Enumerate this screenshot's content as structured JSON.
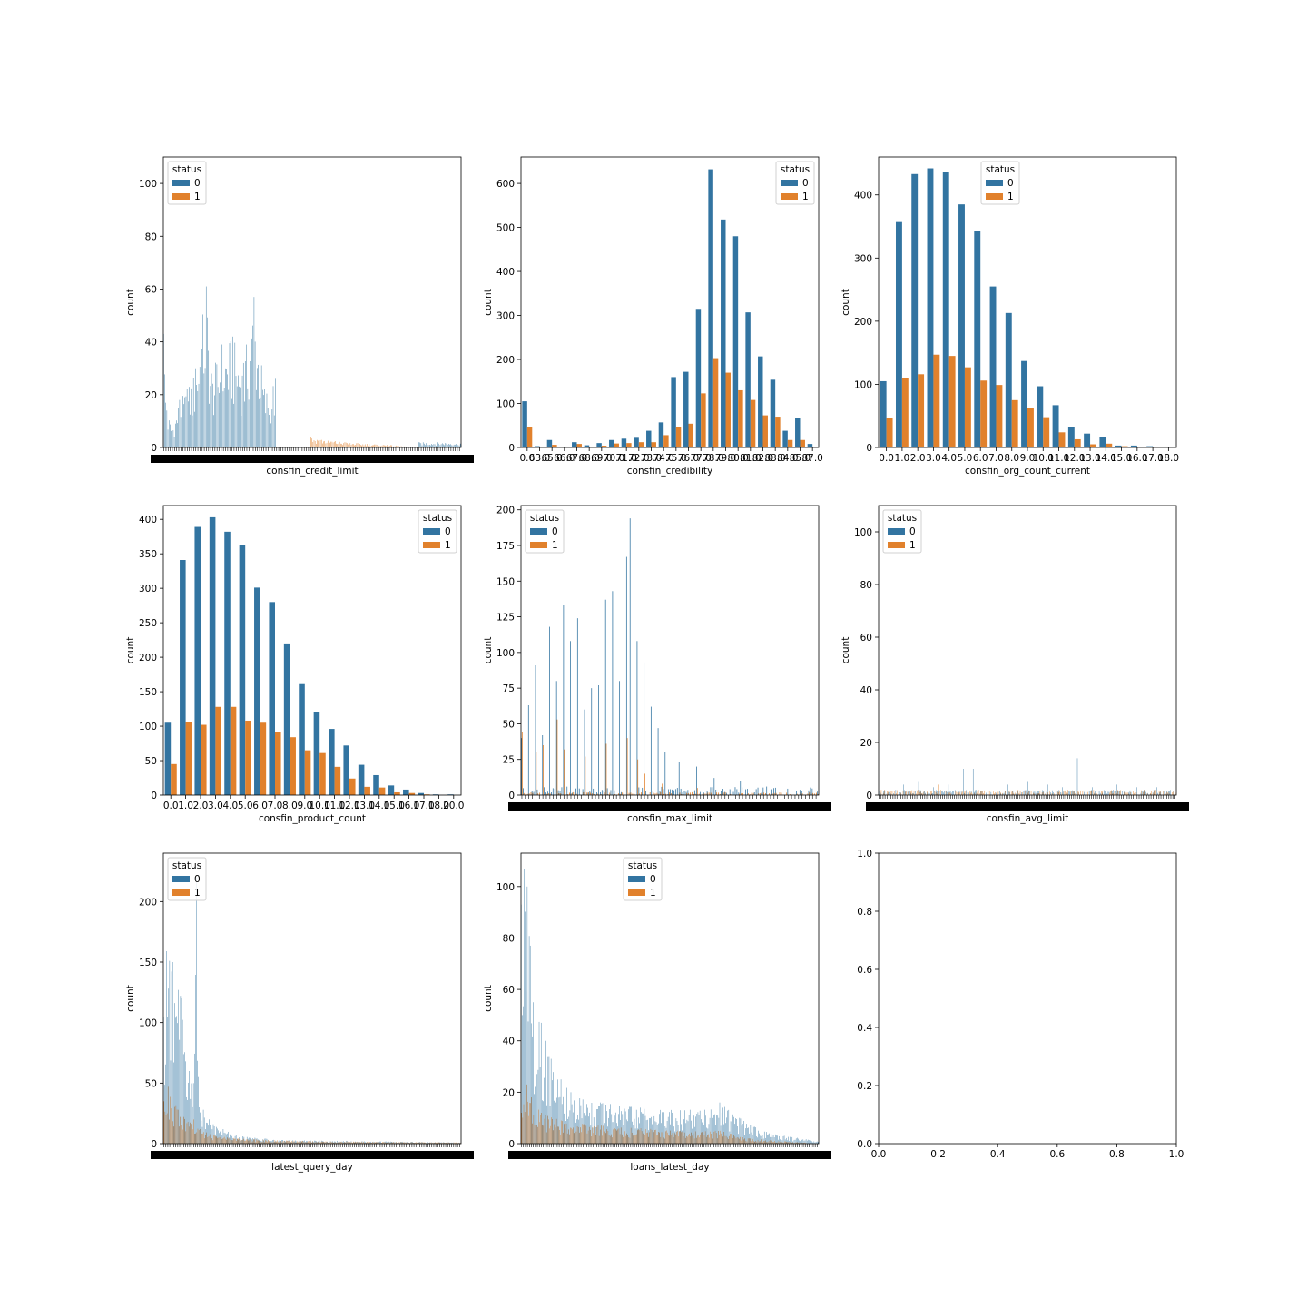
{
  "legend_title": "status",
  "colors": {
    "status_0": "#3274a1",
    "status_1": "#e1812c"
  },
  "chart_data": [
    {
      "type": "bar",
      "xlabel": "consfin_credit_limit",
      "ylabel": "count",
      "ylim": [
        0,
        110
      ],
      "yticks": [
        0,
        20,
        40,
        60,
        80,
        100
      ],
      "legend_position": "upper left",
      "categories_approx": 280,
      "series": [
        {
          "name": "0",
          "profile": [
            [
              0,
              43
            ],
            [
              3,
              14
            ],
            [
              8,
              8
            ],
            [
              15,
              18
            ],
            [
              22,
              22
            ],
            [
              30,
              30
            ],
            [
              40,
              61
            ],
            [
              45,
              28
            ],
            [
              55,
              39
            ],
            [
              65,
              42
            ],
            [
              75,
              32
            ],
            [
              85,
              57
            ],
            [
              95,
              22
            ],
            [
              105,
              26
            ],
            [
              106,
              0
            ],
            [
              239,
              0
            ],
            [
              240,
              2
            ],
            [
              280,
              2
            ]
          ]
        },
        {
          "name": "1",
          "profile": [
            [
              0,
              0
            ],
            [
              137,
              0
            ],
            [
              138,
              4
            ],
            [
              170,
              2
            ],
            [
              210,
              1
            ],
            [
              240,
              0
            ],
            [
              280,
              0
            ]
          ]
        }
      ]
    },
    {
      "type": "bar",
      "xlabel": "consfin_credibility",
      "ylabel": "count",
      "ylim": [
        0,
        660
      ],
      "yticks": [
        0,
        100,
        200,
        300,
        400,
        500,
        600
      ],
      "legend_position": "upper right",
      "categories": [
        "0.0",
        "63.0",
        "65.0",
        "66.0",
        "67.0",
        "68.0",
        "69.0",
        "70.0",
        "71.0",
        "72.0",
        "73.0",
        "74.0",
        "75.0",
        "76.0",
        "77.0",
        "78.0",
        "79.0",
        "80.0",
        "81.0",
        "82.0",
        "83.0",
        "84.0",
        "85.0",
        "87.0"
      ],
      "series": [
        {
          "name": "0",
          "values": [
            105,
            3,
            17,
            2,
            12,
            5,
            10,
            17,
            20,
            22,
            38,
            57,
            160,
            172,
            315,
            632,
            518,
            480,
            307,
            207,
            154,
            38,
            67,
            8
          ]
        },
        {
          "name": "1",
          "values": [
            47,
            0,
            6,
            1,
            8,
            2,
            4,
            9,
            10,
            12,
            12,
            28,
            47,
            54,
            123,
            203,
            170,
            130,
            108,
            73,
            70,
            17,
            17,
            2
          ]
        }
      ]
    },
    {
      "type": "bar",
      "xlabel": "consfin_org_count_current",
      "ylabel": "count",
      "ylim": [
        0,
        460
      ],
      "yticks": [
        0,
        100,
        200,
        300,
        400
      ],
      "legend_position": "upper center",
      "categories": [
        "0.0",
        "1.0",
        "2.0",
        "3.0",
        "4.0",
        "5.0",
        "6.0",
        "7.0",
        "8.0",
        "9.0",
        "10.0",
        "11.0",
        "12.0",
        "13.0",
        "14.0",
        "15.0",
        "16.0",
        "17.0",
        "18.0"
      ],
      "series": [
        {
          "name": "0",
          "values": [
            105,
            357,
            433,
            442,
            437,
            385,
            343,
            255,
            213,
            137,
            97,
            67,
            33,
            22,
            16,
            3,
            3,
            2,
            1
          ]
        },
        {
          "name": "1",
          "values": [
            46,
            110,
            116,
            147,
            145,
            127,
            106,
            99,
            75,
            62,
            48,
            24,
            13,
            5,
            6,
            2,
            0,
            0,
            0
          ]
        }
      ]
    },
    {
      "type": "bar",
      "xlabel": "consfin_product_count",
      "ylabel": "count",
      "ylim": [
        0,
        420
      ],
      "yticks": [
        0,
        50,
        100,
        150,
        200,
        250,
        300,
        350,
        400
      ],
      "legend_position": "upper right",
      "categories": [
        "0.0",
        "1.0",
        "2.0",
        "3.0",
        "4.0",
        "5.0",
        "6.0",
        "7.0",
        "8.0",
        "9.0",
        "10.0",
        "11.0",
        "12.0",
        "13.0",
        "14.0",
        "15.0",
        "16.0",
        "17.0",
        "18.0",
        "20.0"
      ],
      "series": [
        {
          "name": "0",
          "values": [
            105,
            341,
            389,
            403,
            382,
            363,
            301,
            280,
            220,
            161,
            120,
            96,
            72,
            44,
            29,
            14,
            8,
            3,
            1,
            1
          ]
        },
        {
          "name": "1",
          "values": [
            45,
            106,
            102,
            128,
            128,
            108,
            105,
            92,
            84,
            65,
            61,
            41,
            24,
            12,
            11,
            4,
            3,
            1,
            0,
            0
          ]
        }
      ]
    },
    {
      "type": "bar",
      "xlabel": "consfin_max_limit",
      "ylabel": "count",
      "ylim": [
        0,
        203
      ],
      "yticks": [
        0,
        25,
        50,
        75,
        100,
        125,
        150,
        175,
        200
      ],
      "legend_position": "upper left",
      "categories_approx": 170,
      "series": [
        {
          "name": "0",
          "spikes": [
            [
              0,
              40
            ],
            [
              4,
              63
            ],
            [
              8,
              91
            ],
            [
              12,
              42
            ],
            [
              16,
              118
            ],
            [
              20,
              80
            ],
            [
              24,
              133
            ],
            [
              28,
              108
            ],
            [
              32,
              124
            ],
            [
              36,
              60
            ],
            [
              40,
              75
            ],
            [
              44,
              77
            ],
            [
              48,
              137
            ],
            [
              52,
              143
            ],
            [
              56,
              80
            ],
            [
              60,
              167
            ],
            [
              62,
              194
            ],
            [
              66,
              108
            ],
            [
              70,
              93
            ],
            [
              74,
              62
            ],
            [
              78,
              47
            ],
            [
              82,
              30
            ],
            [
              90,
              23
            ],
            [
              100,
              20
            ],
            [
              110,
              12
            ],
            [
              125,
              10
            ],
            [
              140,
              6
            ],
            [
              160,
              3
            ]
          ],
          "base": 3
        },
        {
          "name": "1",
          "spikes": [
            [
              0,
              44
            ],
            [
              8,
              30
            ],
            [
              12,
              35
            ],
            [
              20,
              53
            ],
            [
              24,
              32
            ],
            [
              36,
              27
            ],
            [
              48,
              36
            ],
            [
              60,
              40
            ],
            [
              66,
              25
            ],
            [
              70,
              15
            ],
            [
              80,
              8
            ],
            [
              100,
              5
            ]
          ],
          "base": 1
        }
      ]
    },
    {
      "type": "bar",
      "xlabel": "consfin_avg_limit",
      "ylabel": "count",
      "ylim": [
        0,
        110
      ],
      "yticks": [
        0,
        20,
        40,
        60,
        80,
        100
      ],
      "legend_position": "upper left",
      "categories_approx": 300,
      "series": [
        {
          "name": "0",
          "spikes": [
            [
              10,
              3
            ],
            [
              25,
              4
            ],
            [
              40,
              5
            ],
            [
              55,
              3
            ],
            [
              70,
              4
            ],
            [
              85,
              10
            ],
            [
              95,
              10
            ],
            [
              110,
              3
            ],
            [
              130,
              4
            ],
            [
              150,
              5
            ],
            [
              170,
              4
            ],
            [
              185,
              3
            ],
            [
              200,
              14
            ],
            [
              215,
              3
            ],
            [
              240,
              4
            ],
            [
              260,
              3
            ],
            [
              280,
              3
            ]
          ],
          "base": 1
        },
        {
          "name": "1",
          "spikes": [
            [
              20,
              2
            ],
            [
              60,
              4
            ],
            [
              100,
              2
            ],
            [
              140,
              2
            ],
            [
              190,
              2
            ],
            [
              240,
              2
            ]
          ],
          "base": 1
        }
      ]
    },
    {
      "type": "bar",
      "xlabel": "latest_query_day",
      "ylabel": "count",
      "ylim": [
        0,
        240
      ],
      "yticks": [
        0,
        50,
        100,
        150,
        200
      ],
      "legend_position": "upper left",
      "categories_approx": 300,
      "series": [
        {
          "name": "0",
          "profile": [
            [
              0,
              105
            ],
            [
              3,
              159
            ],
            [
              6,
              151
            ],
            [
              9,
              150
            ],
            [
              12,
              104
            ],
            [
              15,
              127
            ],
            [
              18,
              120
            ],
            [
              22,
              68
            ],
            [
              26,
              60
            ],
            [
              30,
              50
            ],
            [
              33,
              220
            ],
            [
              36,
              30
            ],
            [
              40,
              28
            ],
            [
              50,
              16
            ],
            [
              60,
              12
            ],
            [
              80,
              6
            ],
            [
              120,
              3
            ],
            [
              200,
              2
            ],
            [
              300,
              1
            ]
          ]
        },
        {
          "name": "1",
          "profile": [
            [
              0,
              35
            ],
            [
              4,
              47
            ],
            [
              8,
              40
            ],
            [
              14,
              28
            ],
            [
              20,
              22
            ],
            [
              30,
              20
            ],
            [
              36,
              12
            ],
            [
              50,
              7
            ],
            [
              80,
              4
            ],
            [
              150,
              2
            ],
            [
              300,
              1
            ]
          ]
        }
      ]
    },
    {
      "type": "bar",
      "xlabel": "loans_latest_day",
      "ylabel": "count",
      "ylim": [
        0,
        113
      ],
      "yticks": [
        0,
        20,
        40,
        60,
        80,
        100
      ],
      "legend_position": "upper center",
      "categories_approx": 300,
      "series": [
        {
          "name": "0",
          "profile": [
            [
              0,
              93
            ],
            [
              3,
              107
            ],
            [
              6,
              100
            ],
            [
              9,
              77
            ],
            [
              12,
              55
            ],
            [
              15,
              50
            ],
            [
              20,
              47
            ],
            [
              25,
              40
            ],
            [
              30,
              33
            ],
            [
              40,
              25
            ],
            [
              50,
              20
            ],
            [
              80,
              16
            ],
            [
              120,
              14
            ],
            [
              160,
              13
            ],
            [
              200,
              16
            ],
            [
              220,
              10
            ],
            [
              250,
              4
            ],
            [
              300,
              1
            ]
          ]
        },
        {
          "name": "1",
          "profile": [
            [
              0,
              12
            ],
            [
              5,
              23
            ],
            [
              10,
              18
            ],
            [
              20,
              12
            ],
            [
              40,
              9
            ],
            [
              80,
              7
            ],
            [
              120,
              6
            ],
            [
              160,
              5
            ],
            [
              200,
              5
            ],
            [
              230,
              2
            ],
            [
              300,
              0
            ]
          ]
        }
      ]
    },
    {
      "type": "empty",
      "xlim": [
        0,
        1
      ],
      "ylim": [
        0,
        1
      ],
      "xticks": [
        "0.0",
        "0.2",
        "0.4",
        "0.6",
        "0.8",
        "1.0"
      ],
      "yticks": [
        "0.0",
        "0.2",
        "0.4",
        "0.6",
        "0.8",
        "1.0"
      ]
    }
  ]
}
